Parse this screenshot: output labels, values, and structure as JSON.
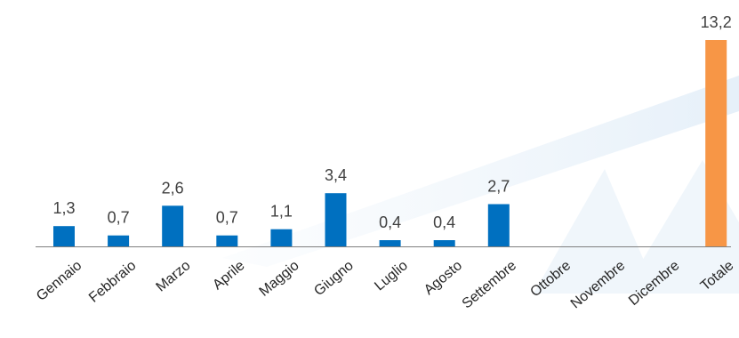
{
  "chart_data": {
    "type": "bar",
    "title": "",
    "xlabel": "",
    "ylabel": "",
    "categories": [
      "Gennaio",
      "Febbraio",
      "Marzo",
      "Aprile",
      "Maggio",
      "Giugno",
      "Luglio",
      "Agosto",
      "Settembre",
      "Ottobre",
      "Novembre",
      "Dicembre",
      "Totale"
    ],
    "values": [
      1.3,
      0.7,
      2.6,
      0.7,
      1.1,
      3.4,
      0.4,
      0.4,
      2.7,
      null,
      null,
      null,
      13.2
    ],
    "data_labels": [
      "1,3",
      "0,7",
      "2,6",
      "0,7",
      "1,1",
      "3,4",
      "0,4",
      "0,4",
      "2,7",
      "",
      "",
      "",
      "13,2"
    ],
    "ylim": [
      0,
      13.2
    ],
    "grid": false,
    "legend": "none",
    "colors": {
      "month_bar": "#0070C0",
      "total_bar": "#F79646",
      "axis": "#7f7f7f"
    }
  }
}
